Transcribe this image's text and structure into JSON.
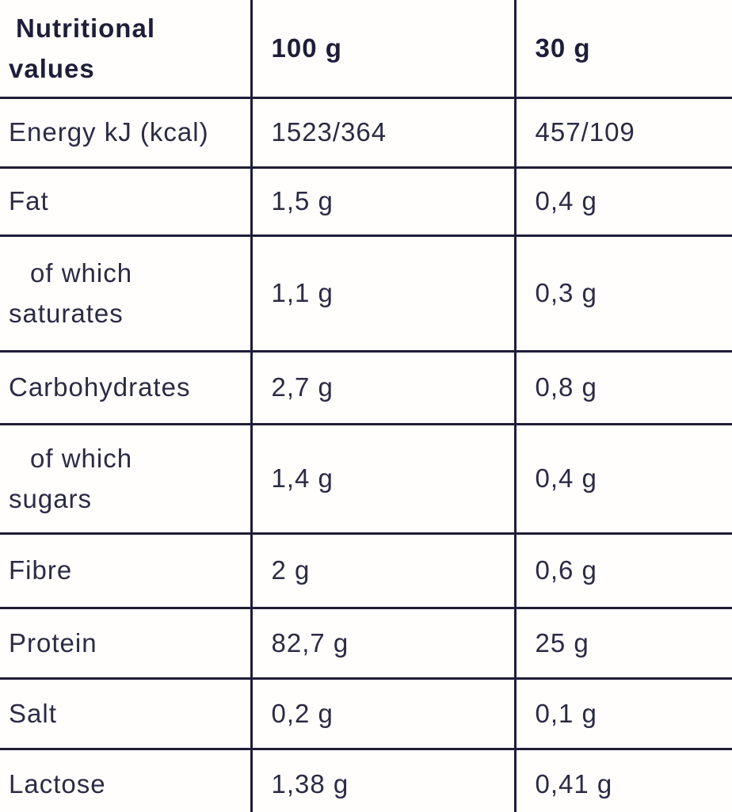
{
  "table": {
    "colors": {
      "text": "#2c2b45",
      "header_text": "#1f1e39",
      "border": "#1f1d37",
      "background": "#fffefc"
    },
    "header": {
      "col1": "Nutritional values",
      "col2": "100 g",
      "col3": "30 g"
    },
    "rows": [
      {
        "label": "Energy kJ (kcal)",
        "per100": "1523/364",
        "per30": "457/109",
        "indent": false
      },
      {
        "label": "Fat",
        "per100": "1,5 g",
        "per30": "0,4 g",
        "indent": false
      },
      {
        "label": "of which saturates",
        "per100": "1,1 g",
        "per30": "0,3 g",
        "indent": true
      },
      {
        "label": "Carbohydrates",
        "per100": "2,7 g",
        "per30": "0,8 g",
        "indent": false
      },
      {
        "label": "of which sugars",
        "per100": "1,4 g",
        "per30": "0,4 g",
        "indent": true
      },
      {
        "label": "Fibre",
        "per100": "2 g",
        "per30": "0,6 g",
        "indent": false
      },
      {
        "label": "Protein",
        "per100": "82,7 g",
        "per30": "25 g",
        "indent": false
      },
      {
        "label": "Salt",
        "per100": "0,2 g",
        "per30": "0,1 g",
        "indent": false
      },
      {
        "label": "Lactose",
        "per100": "1,38 g",
        "per30": "0,41 g",
        "indent": false
      }
    ]
  }
}
